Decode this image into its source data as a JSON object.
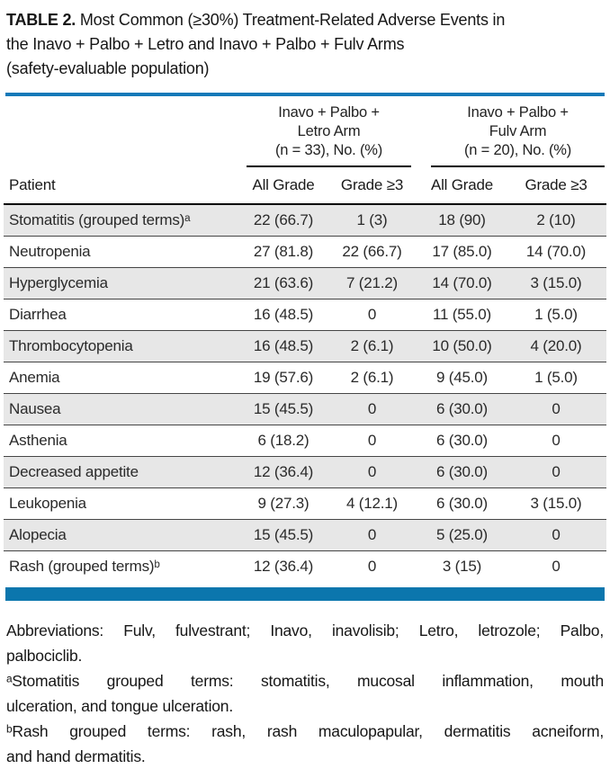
{
  "title": {
    "label": "TABLE 2.",
    "line1": "Most Common (≥30%) Treatment-Related Adverse Events in",
    "line2": "the Inavo + Palbo + Letro and Inavo + Palbo + Fulv Arms",
    "line3": "(safety-evaluable population)"
  },
  "table": {
    "patient_header": "Patient",
    "col_groups": [
      {
        "line1": "Inavo + Palbo +",
        "line2": "Letro Arm",
        "line3": "(n = 33), No. (%)"
      },
      {
        "line1": "Inavo + Palbo +",
        "line2": "Fulv Arm",
        "line3": "(n = 20), No. (%)"
      }
    ],
    "sub_headers": [
      "All Grade",
      "Grade ≥3",
      "All Grade",
      "Grade ≥3"
    ],
    "rows": [
      {
        "label": "Stomatitis (grouped terms)ᵃ",
        "values": [
          "22 (66.7)",
          "1 (3)",
          "18 (90)",
          "2 (10)"
        ]
      },
      {
        "label": "Neutropenia",
        "values": [
          "27 (81.8)",
          "22 (66.7)",
          "17 (85.0)",
          "14 (70.0)"
        ]
      },
      {
        "label": "Hyperglycemia",
        "values": [
          "21 (63.6)",
          "7 (21.2)",
          "14 (70.0)",
          "3 (15.0)"
        ]
      },
      {
        "label": "Diarrhea",
        "values": [
          "16 (48.5)",
          "0",
          "11 (55.0)",
          "1 (5.0)"
        ]
      },
      {
        "label": "Thrombocytopenia",
        "values": [
          "16 (48.5)",
          "2 (6.1)",
          "10 (50.0)",
          "4 (20.0)"
        ]
      },
      {
        "label": "Anemia",
        "values": [
          "19 (57.6)",
          "2 (6.1)",
          "9 (45.0)",
          "1 (5.0)"
        ]
      },
      {
        "label": "Nausea",
        "values": [
          "15 (45.5)",
          "0",
          "6 (30.0)",
          "0"
        ]
      },
      {
        "label": "Asthenia",
        "values": [
          "6 (18.2)",
          "0",
          "6 (30.0)",
          "0"
        ]
      },
      {
        "label": "Decreased appetite",
        "values": [
          "12 (36.4)",
          "0",
          "6 (30.0)",
          "0"
        ]
      },
      {
        "label": "Leukopenia",
        "values": [
          "9 (27.3)",
          "4 (12.1)",
          "6 (30.0)",
          "3 (15.0)"
        ]
      },
      {
        "label": "Alopecia",
        "values": [
          "15 (45.5)",
          "0",
          "5 (25.0)",
          "0"
        ]
      },
      {
        "label": "Rash (grouped terms)ᵇ",
        "values": [
          "12 (36.4)",
          "0",
          "3 (15)",
          "0"
        ]
      }
    ]
  },
  "footnotes": {
    "abbreviations": [
      "Abbreviations: Fulv, fulvestrant; Inavo, inavolisib; Letro, letrozole; Palbo,",
      "palbociclib."
    ],
    "note_a": [
      "ᵃStomatitis grouped terms: stomatitis, mucosal inflammation, mouth",
      "ulceration, and tongue ulceration."
    ],
    "note_b": [
      "ᵇRash grouped terms: rash, rash maculopapular, dermatitis acneiform,",
      "and hand dermatitis."
    ]
  },
  "colors": {
    "top_rule_blue": "#1479b8",
    "bottom_bar_blue": "#0b76ad",
    "row_shade_gray": "#e7e7e7",
    "separator_gray": "#464646"
  }
}
